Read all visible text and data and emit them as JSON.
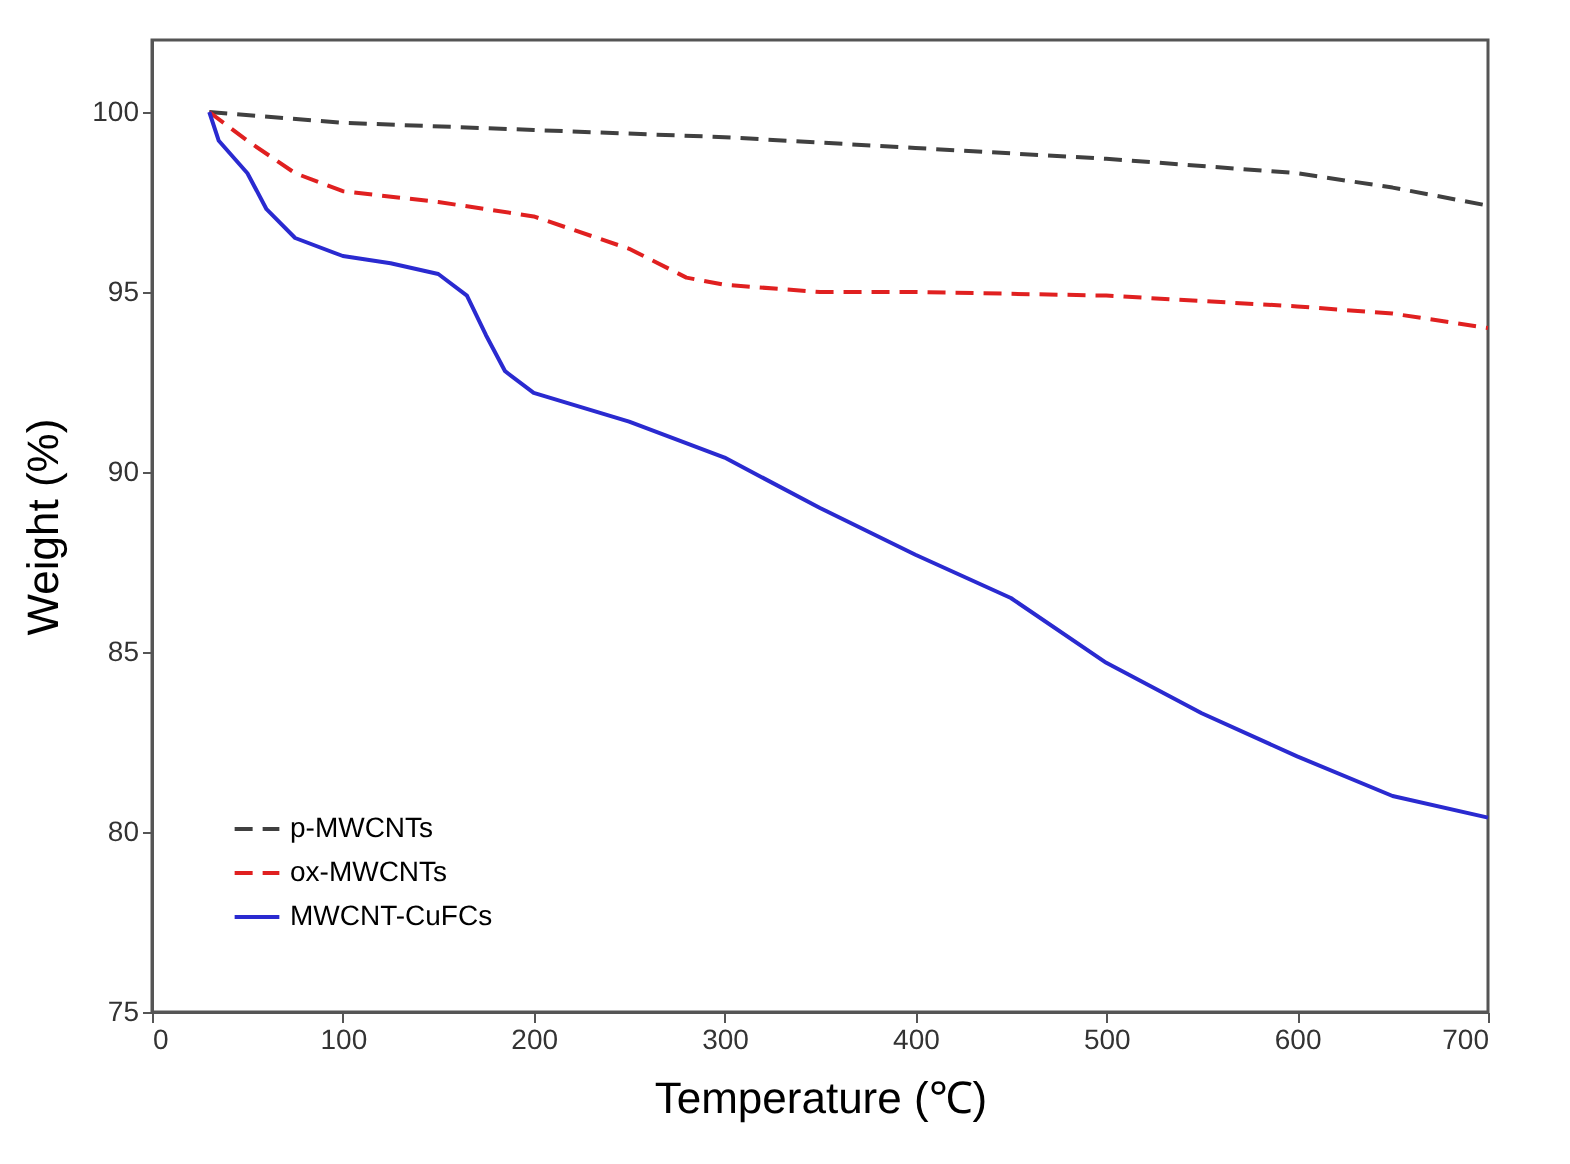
{
  "chart_data": {
    "type": "line",
    "xlabel": "Temperature (℃)",
    "ylabel": "Weight (%)",
    "xlim": [
      0,
      700
    ],
    "xticks": [
      0,
      100,
      200,
      300,
      400,
      500,
      600,
      700
    ],
    "ylim": [
      75,
      102
    ],
    "yticks": [
      75,
      80,
      85,
      90,
      95,
      100
    ],
    "grid": false,
    "legend": "bottom left",
    "marker": "none",
    "x": [
      30,
      100,
      200,
      300,
      400,
      500,
      600,
      650,
      700
    ],
    "series": [
      {
        "name": "p-MWCNTs",
        "color": "#404040",
        "line_style": "dashed",
        "values": [
          100,
          99.7,
          99.5,
          99.3,
          99.0,
          98.7,
          98.3,
          97.9,
          97.4
        ]
      },
      {
        "name": "ox-MWCNTs",
        "color": "#e02020",
        "line_style": "dashed",
        "x": [
          30,
          50,
          75,
          100,
          150,
          200,
          250,
          280,
          300,
          350,
          400,
          500,
          600,
          650,
          700
        ],
        "values": [
          100,
          99.2,
          98.3,
          97.8,
          97.5,
          97.1,
          96.2,
          95.4,
          95.2,
          95.0,
          95.0,
          94.9,
          94.6,
          94.4,
          94.0
        ]
      },
      {
        "name": "MWCNT-CuFCs",
        "color": "#2a2ad0",
        "line_style": "solid",
        "x": [
          30,
          35,
          50,
          60,
          75,
          100,
          125,
          150,
          165,
          175,
          185,
          200,
          250,
          300,
          350,
          400,
          450,
          500,
          550,
          600,
          650,
          700
        ],
        "values": [
          100,
          99.2,
          98.3,
          97.3,
          96.5,
          96.0,
          95.8,
          95.5,
          94.9,
          93.8,
          92.8,
          92.2,
          91.4,
          90.4,
          89.0,
          87.7,
          86.5,
          84.7,
          83.3,
          82.1,
          81.0,
          80.4
        ]
      }
    ]
  }
}
